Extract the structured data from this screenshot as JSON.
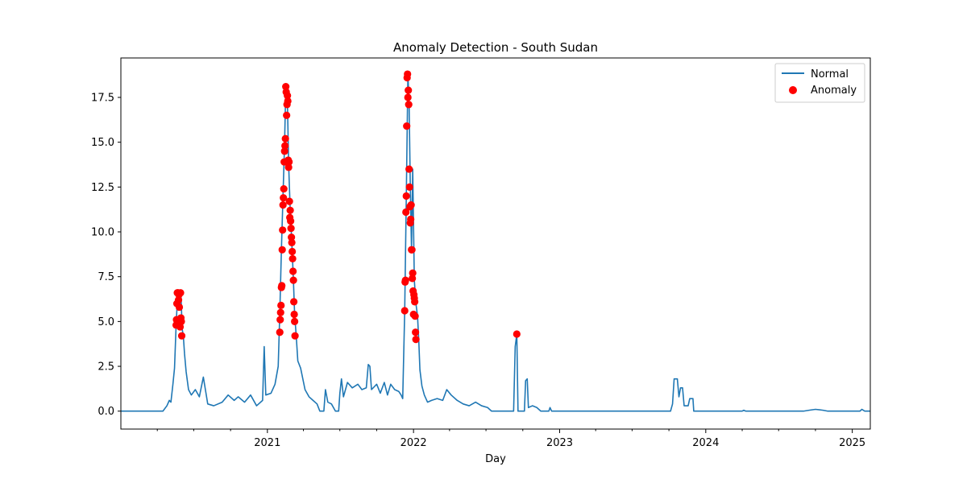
{
  "chart_data": {
    "type": "line",
    "title": "Anomaly Detection - South Sudan",
    "xlabel": "Day",
    "ylabel": "",
    "xlim": [
      "2020-01-01",
      "2025-02-15"
    ],
    "ylim": [
      -1.0,
      19.7
    ],
    "x_ticks": [
      {
        "date": "2021-01-01",
        "label": "2021"
      },
      {
        "date": "2022-01-01",
        "label": "2022"
      },
      {
        "date": "2023-01-01",
        "label": "2023"
      },
      {
        "date": "2024-01-01",
        "label": "2024"
      },
      {
        "date": "2025-01-01",
        "label": "2025"
      }
    ],
    "y_ticks": [
      {
        "value": 0.0,
        "label": "0.0"
      },
      {
        "value": 2.5,
        "label": "2.5"
      },
      {
        "value": 5.0,
        "label": "5.0"
      },
      {
        "value": 7.5,
        "label": "7.5"
      },
      {
        "value": 10.0,
        "label": "10.0"
      },
      {
        "value": 12.5,
        "label": "12.5"
      },
      {
        "value": 15.0,
        "label": "15.0"
      },
      {
        "value": 17.5,
        "label": "17.5"
      }
    ],
    "legend": {
      "position": "top-right",
      "entries": [
        "Normal",
        "Anomaly"
      ]
    },
    "grid": false,
    "series": [
      {
        "name": "Normal",
        "kind": "line",
        "color": "#1f77b4",
        "points": [
          [
            "2020-01-01",
            0
          ],
          [
            "2020-04-15",
            0
          ],
          [
            "2020-04-25",
            0.3
          ],
          [
            "2020-05-01",
            0.6
          ],
          [
            "2020-05-05",
            0.5
          ],
          [
            "2020-05-10",
            1.5
          ],
          [
            "2020-05-14",
            2.4
          ],
          [
            "2020-05-18",
            4.8
          ],
          [
            "2020-05-22",
            6.6
          ],
          [
            "2020-05-26",
            6.5
          ],
          [
            "2020-05-30",
            6.6
          ],
          [
            "2020-06-02",
            4.6
          ],
          [
            "2020-06-05",
            4.2
          ],
          [
            "2020-06-08",
            3.2
          ],
          [
            "2020-06-12",
            2.2
          ],
          [
            "2020-06-18",
            1.2
          ],
          [
            "2020-06-25",
            0.9
          ],
          [
            "2020-07-05",
            1.2
          ],
          [
            "2020-07-15",
            0.8
          ],
          [
            "2020-07-25",
            1.9
          ],
          [
            "2020-08-05",
            0.4
          ],
          [
            "2020-08-20",
            0.3
          ],
          [
            "2020-09-10",
            0.5
          ],
          [
            "2020-09-25",
            0.9
          ],
          [
            "2020-10-10",
            0.6
          ],
          [
            "2020-10-20",
            0.8
          ],
          [
            "2020-11-05",
            0.5
          ],
          [
            "2020-11-20",
            0.9
          ],
          [
            "2020-12-05",
            0.3
          ],
          [
            "2020-12-20",
            0.6
          ],
          [
            "2020-12-24",
            3.6
          ],
          [
            "2020-12-28",
            0.9
          ],
          [
            "2021-01-10",
            1.0
          ],
          [
            "2021-01-20",
            1.5
          ],
          [
            "2021-01-28",
            2.5
          ],
          [
            "2021-02-01",
            5.5
          ],
          [
            "2021-02-05",
            9.0
          ],
          [
            "2021-02-09",
            12.0
          ],
          [
            "2021-02-13",
            15.0
          ],
          [
            "2021-02-16",
            18.1
          ],
          [
            "2021-02-20",
            17.3
          ],
          [
            "2021-02-23",
            13.8
          ],
          [
            "2021-02-27",
            11.2
          ],
          [
            "2021-03-03",
            9.4
          ],
          [
            "2021-03-07",
            7.3
          ],
          [
            "2021-03-10",
            5.4
          ],
          [
            "2021-03-14",
            4.2
          ],
          [
            "2021-03-18",
            2.8
          ],
          [
            "2021-03-25",
            2.4
          ],
          [
            "2021-04-05",
            1.2
          ],
          [
            "2021-04-15",
            0.8
          ],
          [
            "2021-04-25",
            0.6
          ],
          [
            "2021-05-05",
            0.4
          ],
          [
            "2021-05-12",
            0
          ],
          [
            "2021-05-22",
            0
          ],
          [
            "2021-05-26",
            1.2
          ],
          [
            "2021-06-01",
            0.5
          ],
          [
            "2021-06-10",
            0.4
          ],
          [
            "2021-06-20",
            0
          ],
          [
            "2021-06-28",
            0
          ],
          [
            "2021-07-01",
            1.0
          ],
          [
            "2021-07-05",
            1.8
          ],
          [
            "2021-07-10",
            0.8
          ],
          [
            "2021-07-20",
            1.6
          ],
          [
            "2021-08-01",
            1.3
          ],
          [
            "2021-08-15",
            1.5
          ],
          [
            "2021-08-25",
            1.2
          ],
          [
            "2021-09-05",
            1.3
          ],
          [
            "2021-09-10",
            2.6
          ],
          [
            "2021-09-14",
            2.5
          ],
          [
            "2021-09-18",
            1.2
          ],
          [
            "2021-10-01",
            1.5
          ],
          [
            "2021-10-10",
            1.0
          ],
          [
            "2021-10-20",
            1.6
          ],
          [
            "2021-10-28",
            0.9
          ],
          [
            "2021-11-05",
            1.5
          ],
          [
            "2021-11-15",
            1.2
          ],
          [
            "2021-11-25",
            1.1
          ],
          [
            "2021-12-01",
            0.9
          ],
          [
            "2021-12-05",
            0.7
          ],
          [
            "2021-12-10",
            5.6
          ],
          [
            "2021-12-14",
            12.0
          ],
          [
            "2021-12-18",
            18.8
          ],
          [
            "2021-12-21",
            17.1
          ],
          [
            "2021-12-24",
            12.5
          ],
          [
            "2021-12-27",
            9.0
          ],
          [
            "2021-12-30",
            13.5
          ],
          [
            "2022-01-03",
            7.3
          ],
          [
            "2022-01-07",
            6.0
          ],
          [
            "2022-01-11",
            5.3
          ],
          [
            "2022-01-14",
            4.0
          ],
          [
            "2022-01-17",
            2.3
          ],
          [
            "2022-01-22",
            1.4
          ],
          [
            "2022-01-28",
            0.9
          ],
          [
            "2022-02-05",
            0.5
          ],
          [
            "2022-02-15",
            0.6
          ],
          [
            "2022-03-01",
            0.7
          ],
          [
            "2022-03-15",
            0.6
          ],
          [
            "2022-03-25",
            1.2
          ],
          [
            "2022-04-05",
            0.9
          ],
          [
            "2022-04-20",
            0.6
          ],
          [
            "2022-05-05",
            0.4
          ],
          [
            "2022-05-20",
            0.3
          ],
          [
            "2022-06-05",
            0.5
          ],
          [
            "2022-06-20",
            0.3
          ],
          [
            "2022-07-05",
            0.2
          ],
          [
            "2022-07-15",
            0
          ],
          [
            "2022-09-08",
            0
          ],
          [
            "2022-09-12",
            3.6
          ],
          [
            "2022-09-16",
            4.3
          ],
          [
            "2022-09-19",
            0
          ],
          [
            "2022-10-05",
            0
          ],
          [
            "2022-10-08",
            1.7
          ],
          [
            "2022-10-12",
            1.8
          ],
          [
            "2022-10-15",
            0.2
          ],
          [
            "2022-10-25",
            0.3
          ],
          [
            "2022-11-05",
            0.2
          ],
          [
            "2022-11-15",
            0
          ],
          [
            "2022-12-05",
            0
          ],
          [
            "2022-12-08",
            0.2
          ],
          [
            "2022-12-12",
            0
          ],
          [
            "2023-10-05",
            0
          ],
          [
            "2023-10-10",
            0.4
          ],
          [
            "2023-10-14",
            1.8
          ],
          [
            "2023-10-22",
            1.8
          ],
          [
            "2023-10-26",
            0.8
          ],
          [
            "2023-10-30",
            1.3
          ],
          [
            "2023-11-04",
            1.3
          ],
          [
            "2023-11-08",
            0.3
          ],
          [
            "2023-11-18",
            0.3
          ],
          [
            "2023-11-22",
            0.7
          ],
          [
            "2023-11-30",
            0.7
          ],
          [
            "2023-12-02",
            0
          ],
          [
            "2024-04-01",
            0
          ],
          [
            "2024-04-05",
            0.05
          ],
          [
            "2024-04-10",
            0
          ],
          [
            "2024-09-01",
            0
          ],
          [
            "2024-09-15",
            0.05
          ],
          [
            "2024-10-01",
            0.1
          ],
          [
            "2024-10-20",
            0.05
          ],
          [
            "2024-11-01",
            0
          ],
          [
            "2025-01-20",
            0
          ],
          [
            "2025-01-25",
            0.1
          ],
          [
            "2025-02-01",
            0
          ],
          [
            "2025-02-15",
            0
          ]
        ]
      },
      {
        "name": "Anomaly",
        "kind": "scatter",
        "color": "#ff0000",
        "points": [
          [
            "2020-05-18",
            4.8
          ],
          [
            "2020-05-19",
            5.1
          ],
          [
            "2020-05-20",
            6.0
          ],
          [
            "2020-05-21",
            6.6
          ],
          [
            "2020-05-23",
            6.6
          ],
          [
            "2020-05-24",
            6.2
          ],
          [
            "2020-05-25",
            6.5
          ],
          [
            "2020-05-26",
            5.8
          ],
          [
            "2020-05-27",
            5.0
          ],
          [
            "2020-05-28",
            4.7
          ],
          [
            "2020-05-29",
            6.6
          ],
          [
            "2020-05-30",
            5.2
          ],
          [
            "2020-05-31",
            5.0
          ],
          [
            "2020-06-01",
            4.2
          ],
          [
            "2021-02-01",
            4.4
          ],
          [
            "2021-02-02",
            5.1
          ],
          [
            "2021-02-03",
            5.5
          ],
          [
            "2021-02-04",
            5.9
          ],
          [
            "2021-02-05",
            6.9
          ],
          [
            "2021-02-06",
            7.0
          ],
          [
            "2021-02-07",
            9.0
          ],
          [
            "2021-02-08",
            10.1
          ],
          [
            "2021-02-09",
            11.5
          ],
          [
            "2021-02-10",
            11.9
          ],
          [
            "2021-02-11",
            12.4
          ],
          [
            "2021-02-12",
            13.9
          ],
          [
            "2021-02-13",
            14.5
          ],
          [
            "2021-02-14",
            14.8
          ],
          [
            "2021-02-15",
            15.2
          ],
          [
            "2021-02-16",
            18.1
          ],
          [
            "2021-02-17",
            17.8
          ],
          [
            "2021-02-18",
            16.5
          ],
          [
            "2021-02-19",
            17.1
          ],
          [
            "2021-02-20",
            17.6
          ],
          [
            "2021-02-21",
            17.3
          ],
          [
            "2021-02-22",
            14.0
          ],
          [
            "2021-02-23",
            13.6
          ],
          [
            "2021-02-24",
            13.9
          ],
          [
            "2021-02-25",
            11.7
          ],
          [
            "2021-02-26",
            10.8
          ],
          [
            "2021-02-27",
            11.2
          ],
          [
            "2021-02-28",
            10.6
          ],
          [
            "2021-03-01",
            10.2
          ],
          [
            "2021-03-02",
            9.7
          ],
          [
            "2021-03-03",
            9.4
          ],
          [
            "2021-03-04",
            8.9
          ],
          [
            "2021-03-05",
            8.5
          ],
          [
            "2021-03-06",
            7.8
          ],
          [
            "2021-03-07",
            7.3
          ],
          [
            "2021-03-08",
            6.1
          ],
          [
            "2021-03-09",
            5.4
          ],
          [
            "2021-03-10",
            5.0
          ],
          [
            "2021-03-11",
            4.2
          ],
          [
            "2021-12-10",
            5.6
          ],
          [
            "2021-12-11",
            7.2
          ],
          [
            "2021-12-12",
            7.3
          ],
          [
            "2021-12-13",
            11.1
          ],
          [
            "2021-12-14",
            12.0
          ],
          [
            "2021-12-15",
            15.9
          ],
          [
            "2021-12-16",
            18.6
          ],
          [
            "2021-12-17",
            18.8
          ],
          [
            "2021-12-18",
            17.5
          ],
          [
            "2021-12-19",
            17.9
          ],
          [
            "2021-12-20",
            17.1
          ],
          [
            "2021-12-21",
            13.5
          ],
          [
            "2021-12-22",
            12.5
          ],
          [
            "2021-12-23",
            11.4
          ],
          [
            "2021-12-24",
            10.5
          ],
          [
            "2021-12-25",
            10.7
          ],
          [
            "2021-12-26",
            11.5
          ],
          [
            "2021-12-27",
            9.0
          ],
          [
            "2021-12-28",
            9.0
          ],
          [
            "2021-12-29",
            7.4
          ],
          [
            "2021-12-30",
            7.7
          ],
          [
            "2021-12-31",
            6.7
          ],
          [
            "2022-01-01",
            5.4
          ],
          [
            "2022-01-02",
            6.5
          ],
          [
            "2022-01-03",
            6.3
          ],
          [
            "2022-01-04",
            6.1
          ],
          [
            "2022-01-05",
            5.3
          ],
          [
            "2022-01-06",
            4.4
          ],
          [
            "2022-01-07",
            4.0
          ],
          [
            "2022-09-16",
            4.3
          ]
        ]
      }
    ]
  }
}
